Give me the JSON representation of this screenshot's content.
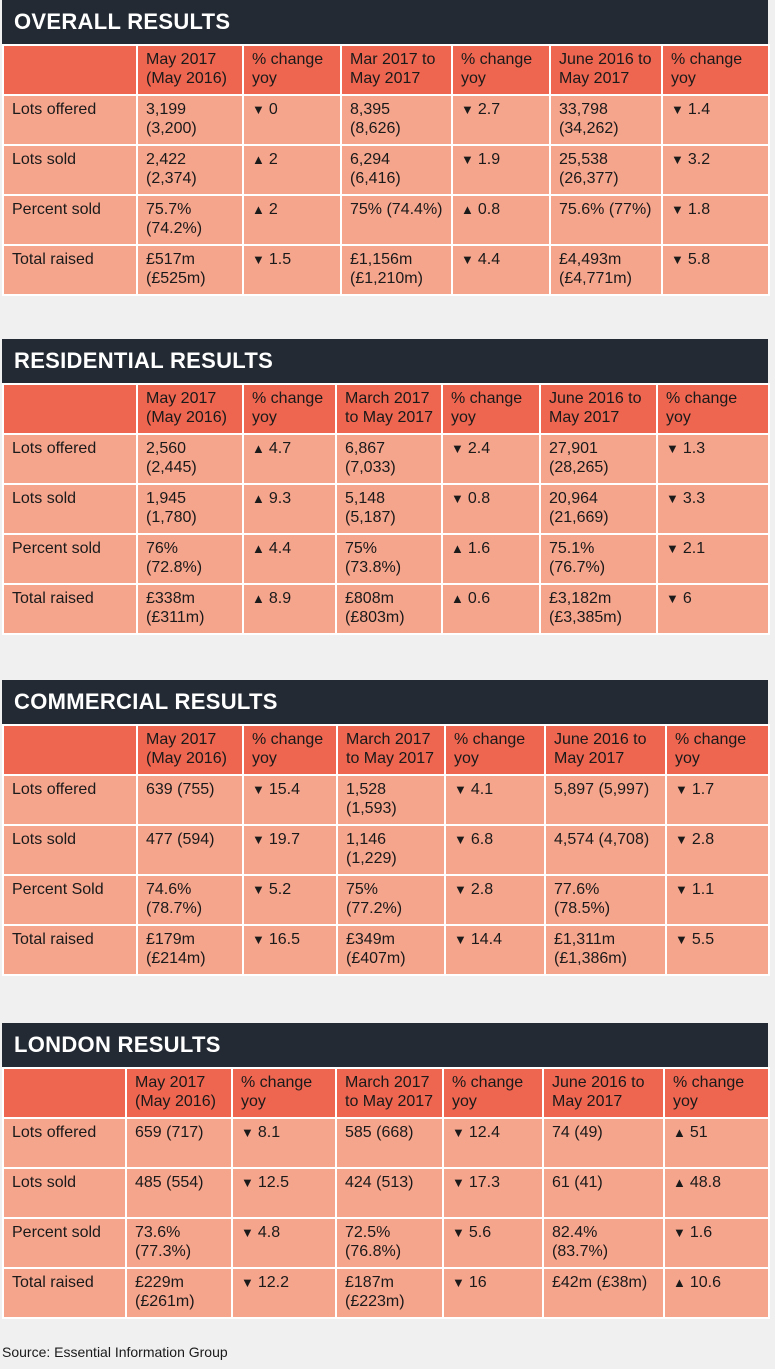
{
  "sections": [
    {
      "title": "OVERALL RESULTS",
      "headers": [
        "",
        "May 2017 (May 2016)",
        "% change yoy",
        "Mar 2017 to May 2017",
        "% change yoy",
        "June 2016 to May 2017",
        "% change yoy"
      ],
      "rows": [
        {
          "label": "Lots offered",
          "c1": "3,199 (3,200)",
          "c2": {
            "dir": "down",
            "val": "0"
          },
          "c3": "8,395 (8,626)",
          "c4": {
            "dir": "down",
            "val": "2.7"
          },
          "c5": "33,798 (34,262)",
          "c6": {
            "dir": "down",
            "val": "1.4"
          }
        },
        {
          "label": "Lots sold",
          "c1": "2,422 (2,374)",
          "c2": {
            "dir": "up",
            "val": "2"
          },
          "c3": "6,294 (6,416)",
          "c4": {
            "dir": "down",
            "val": "1.9"
          },
          "c5": "25,538 (26,377)",
          "c6": {
            "dir": "down",
            "val": "3.2"
          }
        },
        {
          "label": "Percent sold",
          "c1": "75.7% (74.2%)",
          "c2": {
            "dir": "up",
            "val": "2"
          },
          "c3": "75% (74.4%)",
          "c4": {
            "dir": "up",
            "val": "0.8"
          },
          "c5": "75.6% (77%)",
          "c6": {
            "dir": "down",
            "val": "1.8"
          }
        },
        {
          "label": "Total raised",
          "c1": "£517m (£525m)",
          "c2": {
            "dir": "down",
            "val": "1.5"
          },
          "c3": "£1,156m (£1,210m)",
          "c4": {
            "dir": "down",
            "val": "4.4"
          },
          "c5": "£4,493m (£4,771m)",
          "c6": {
            "dir": "down",
            "val": "5.8"
          }
        }
      ]
    },
    {
      "title": "RESIDENTIAL RESULTS",
      "headers": [
        "",
        "May 2017 (May 2016)",
        "% change yoy",
        "March 2017 to May 2017",
        "% change yoy",
        "June 2016 to May 2017",
        "% change yoy"
      ],
      "rows": [
        {
          "label": "Lots offered",
          "c1": "2,560 (2,445)",
          "c2": {
            "dir": "up",
            "val": "4.7"
          },
          "c3": "6,867 (7,033)",
          "c4": {
            "dir": "down",
            "val": "2.4"
          },
          "c5": "27,901 (28,265)",
          "c6": {
            "dir": "down",
            "val": "1.3"
          }
        },
        {
          "label": "Lots sold",
          "c1": "1,945 (1,780)",
          "c2": {
            "dir": "up",
            "val": "9.3"
          },
          "c3": "5,148 (5,187)",
          "c4": {
            "dir": "down",
            "val": "0.8"
          },
          "c5": "20,964 (21,669)",
          "c6": {
            "dir": "down",
            "val": "3.3"
          }
        },
        {
          "label": "Percent sold",
          "c1": "76% (72.8%)",
          "c2": {
            "dir": "up",
            "val": "4.4"
          },
          "c3": "75% (73.8%)",
          "c4": {
            "dir": "up",
            "val": "1.6"
          },
          "c5": "75.1% (76.7%)",
          "c6": {
            "dir": "down",
            "val": "2.1"
          }
        },
        {
          "label": "Total raised",
          "c1": "£338m (£311m)",
          "c2": {
            "dir": "up",
            "val": "8.9"
          },
          "c3": "£808m (£803m)",
          "c4": {
            "dir": "up",
            "val": "0.6"
          },
          "c5": "£3,182m (£3,385m)",
          "c6": {
            "dir": "down",
            "val": "6"
          }
        }
      ]
    },
    {
      "title": "COMMERCIAL RESULTS",
      "headers": [
        "",
        "May 2017 (May 2016)",
        "% change yoy",
        "March 2017 to May 2017",
        "% change yoy",
        "June 2016 to May 2017",
        "% change yoy"
      ],
      "rows": [
        {
          "label": "Lots offered",
          "c1": "639 (755)",
          "c2": {
            "dir": "down",
            "val": "15.4"
          },
          "c3": "1,528 (1,593)",
          "c4": {
            "dir": "down",
            "val": "4.1"
          },
          "c5": "5,897 (5,997)",
          "c6": {
            "dir": "down",
            "val": "1.7"
          }
        },
        {
          "label": "Lots sold",
          "c1": "477 (594)",
          "c2": {
            "dir": "down",
            "val": "19.7"
          },
          "c3": "1,146 (1,229)",
          "c4": {
            "dir": "down",
            "val": "6.8"
          },
          "c5": "4,574 (4,708)",
          "c6": {
            "dir": "down",
            "val": "2.8"
          }
        },
        {
          "label": "Percent Sold",
          "c1": "74.6% (78.7%)",
          "c2": {
            "dir": "down",
            "val": "5.2"
          },
          "c3": "75% (77.2%)",
          "c4": {
            "dir": "down",
            "val": "2.8"
          },
          "c5": "77.6% (78.5%)",
          "c6": {
            "dir": "down",
            "val": "1.1"
          }
        },
        {
          "label": "Total raised",
          "c1": "£179m (£214m)",
          "c2": {
            "dir": "down",
            "val": "16.5"
          },
          "c3": "£349m (£407m)",
          "c4": {
            "dir": "down",
            "val": "14.4"
          },
          "c5": "£1,311m (£1,386m)",
          "c6": {
            "dir": "down",
            "val": "5.5"
          }
        }
      ]
    },
    {
      "title": "LONDON RESULTS",
      "headers": [
        "",
        "May 2017 (May 2016)",
        "% change yoy",
        "March 2017 to May 2017",
        "% change yoy",
        "June 2016 to May 2017",
        "% change yoy"
      ],
      "rows": [
        {
          "label": "Lots offered",
          "c1": "659 (717)",
          "c2": {
            "dir": "down",
            "val": "8.1"
          },
          "c3": "585 (668)",
          "c4": {
            "dir": "down",
            "val": "12.4"
          },
          "c5": "74 (49)",
          "c6": {
            "dir": "up",
            "val": "51"
          }
        },
        {
          "label": "Lots sold",
          "c1": "485 (554)",
          "c2": {
            "dir": "down",
            "val": "12.5"
          },
          "c3": "424 (513)",
          "c4": {
            "dir": "down",
            "val": "17.3"
          },
          "c5": "61 (41)",
          "c6": {
            "dir": "up",
            "val": "48.8"
          }
        },
        {
          "label": "Percent sold",
          "c1": "73.6% (77.3%)",
          "c2": {
            "dir": "down",
            "val": "4.8"
          },
          "c3": "72.5% (76.8%)",
          "c4": {
            "dir": "down",
            "val": "5.6"
          },
          "c5": "82.4% (83.7%)",
          "c6": {
            "dir": "down",
            "val": "1.6"
          }
        },
        {
          "label": "Total raised",
          "c1": "£229m (£261m)",
          "c2": {
            "dir": "down",
            "val": "12.2"
          },
          "c3": "£187m (£223m)",
          "c4": {
            "dir": "down",
            "val": "16"
          },
          "c5": "£42m (£38m)",
          "c6": {
            "dir": "up",
            "val": "10.6"
          }
        }
      ]
    }
  ],
  "source": "Source: Essential Information Group",
  "colors": {
    "title_bg": "#232a33",
    "header_bg": "#ee6650",
    "cell_bg": "#f6a58d",
    "page_bg": "#f0f0f0"
  },
  "icons": {
    "up": "triangle-up-icon",
    "down": "triangle-down-icon"
  }
}
